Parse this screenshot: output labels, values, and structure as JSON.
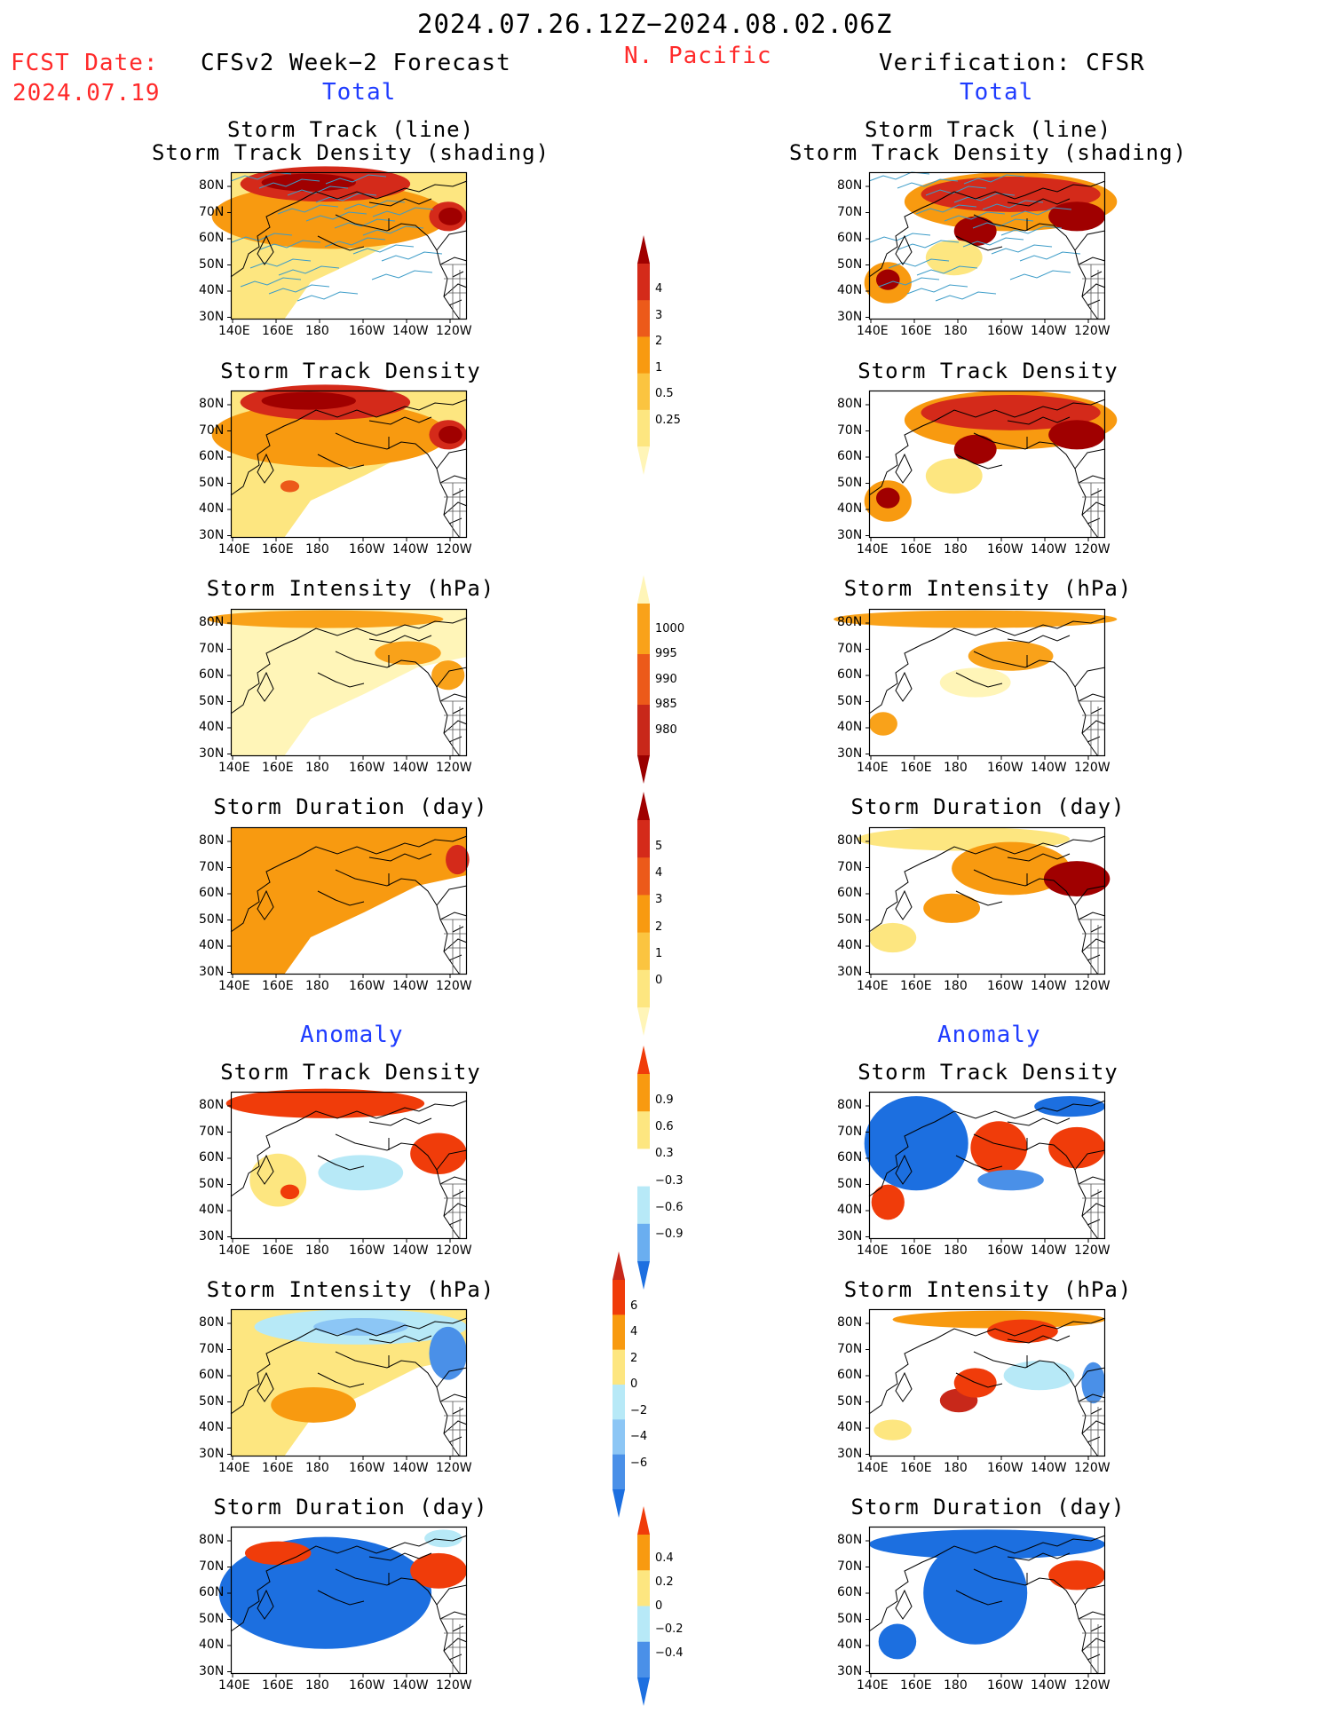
{
  "header": {
    "period": "2024.07.26.12Z−2024.08.02.06Z",
    "fcst_date_label": "FCST Date:",
    "fcst_date": "2024.07.19",
    "forecast_label": "CFSv2 Week−2 Forecast",
    "region": "N. Pacific",
    "verification_label": "Verification: CFSR",
    "total_label": "Total",
    "anomaly_label": "Anomaly"
  },
  "map_axes": {
    "lat_labels": [
      "80N",
      "70N",
      "60N",
      "50N",
      "40N",
      "30N"
    ],
    "lon_labels": [
      "140E",
      "160E",
      "180",
      "160W",
      "140W",
      "120W"
    ]
  },
  "panels": {
    "t_track": "Storm Track (line)",
    "t_track2": "Storm Track Density (shading)",
    "t_density": "Storm Track Density",
    "t_intensity": "Storm Intensity (hPa)",
    "t_duration": "Storm Duration (day)"
  },
  "colorbars": {
    "density": {
      "labels": [
        "4",
        "3",
        "2",
        "1",
        "0.5",
        "0.25"
      ],
      "colors": [
        "#a00000",
        "#d42a1a",
        "#ec5a1a",
        "#f89a10",
        "#fbc440",
        "#fde680",
        "#fff5b8"
      ]
    },
    "intensity": {
      "labels": [
        "1000",
        "995",
        "990",
        "985",
        "980"
      ],
      "colors": [
        "#fff5b8",
        "#f9a21a",
        "#ec5a1a",
        "#c8281a",
        "#9a0000"
      ]
    },
    "duration": {
      "labels": [
        "5",
        "4",
        "3",
        "2",
        "1",
        "0"
      ],
      "colors": [
        "#a00000",
        "#d42a1a",
        "#ec5a1a",
        "#f89a10",
        "#fbc440",
        "#fde680",
        "#fff5b8"
      ]
    },
    "anom_density": {
      "labels": [
        "0.9",
        "0.6",
        "0.3",
        "−0.3",
        "−0.6",
        "−0.9"
      ],
      "colors": [
        "#f03c0a",
        "#f89a10",
        "#fde680",
        "#ffffff",
        "#b7e9f7",
        "#6aaef0",
        "#1c6fe0"
      ]
    },
    "anom_intensity": {
      "labels": [
        "6",
        "4",
        "2",
        "0",
        "−2",
        "−4",
        "−6"
      ],
      "colors": [
        "#c8281a",
        "#f03c0a",
        "#f89a10",
        "#fde680",
        "#b7e9f7",
        "#8cc6f5",
        "#4a90e8",
        "#1c6fe0"
      ]
    },
    "anom_duration": {
      "labels": [
        "0.4",
        "0.2",
        "0",
        "−0.2",
        "−0.4"
      ],
      "colors": [
        "#f03c0a",
        "#f89a10",
        "#fde680",
        "#b7e9f7",
        "#4a90e8",
        "#1c6fe0"
      ]
    }
  },
  "fields": {
    "f_track": {
      "bg": "#fde680",
      "blobs": [
        [
          "#f89a10",
          0.42,
          0.3,
          0.5,
          0.22
        ],
        [
          "#d42a1a",
          0.4,
          0.08,
          0.36,
          0.12
        ],
        [
          "#a00000",
          0.33,
          0.07,
          0.2,
          0.06
        ],
        [
          "#d42a1a",
          0.92,
          0.3,
          0.08,
          0.1
        ],
        [
          "#a00000",
          0.93,
          0.3,
          0.05,
          0.06
        ]
      ],
      "mask": "track"
    },
    "v_track": {
      "bg": "#ffffff",
      "blobs": [
        [
          "#f89a10",
          0.6,
          0.2,
          0.45,
          0.2
        ],
        [
          "#d42a1a",
          0.6,
          0.15,
          0.38,
          0.12
        ],
        [
          "#a00000",
          0.45,
          0.4,
          0.09,
          0.1
        ],
        [
          "#a00000",
          0.88,
          0.3,
          0.12,
          0.1
        ],
        [
          "#f89a10",
          0.08,
          0.75,
          0.1,
          0.14
        ],
        [
          "#a00000",
          0.08,
          0.73,
          0.05,
          0.07
        ],
        [
          "#fde680",
          0.36,
          0.58,
          0.12,
          0.12
        ]
      ],
      "mask": "none"
    },
    "f_density": {
      "bg": "#fde680",
      "blobs": [
        [
          "#f89a10",
          0.42,
          0.3,
          0.5,
          0.22
        ],
        [
          "#d42a1a",
          0.4,
          0.08,
          0.36,
          0.12
        ],
        [
          "#a00000",
          0.33,
          0.07,
          0.2,
          0.06
        ],
        [
          "#d42a1a",
          0.92,
          0.3,
          0.08,
          0.1
        ],
        [
          "#a00000",
          0.93,
          0.3,
          0.05,
          0.06
        ],
        [
          "#ec5a1a",
          0.25,
          0.65,
          0.04,
          0.04
        ]
      ],
      "mask": "track"
    },
    "v_density": {
      "bg": "#ffffff",
      "blobs": [
        [
          "#f89a10",
          0.6,
          0.2,
          0.45,
          0.2
        ],
        [
          "#d42a1a",
          0.6,
          0.15,
          0.38,
          0.12
        ],
        [
          "#a00000",
          0.45,
          0.4,
          0.09,
          0.1
        ],
        [
          "#a00000",
          0.88,
          0.3,
          0.12,
          0.1
        ],
        [
          "#f89a10",
          0.08,
          0.75,
          0.1,
          0.14
        ],
        [
          "#a00000",
          0.08,
          0.73,
          0.05,
          0.07
        ],
        [
          "#fde680",
          0.36,
          0.58,
          0.12,
          0.12
        ]
      ],
      "mask": "none"
    },
    "f_intensity": {
      "bg": "#fff5b8",
      "blobs": [
        [
          "#f9a21a",
          0.4,
          0.07,
          0.5,
          0.06
        ],
        [
          "#f9a21a",
          0.75,
          0.3,
          0.14,
          0.08
        ],
        [
          "#f9a21a",
          0.92,
          0.45,
          0.07,
          0.1
        ]
      ],
      "mask": "track"
    },
    "v_intensity": {
      "bg": "#ffffff",
      "blobs": [
        [
          "#f9a21a",
          0.45,
          0.07,
          0.6,
          0.06
        ],
        [
          "#f9a21a",
          0.6,
          0.32,
          0.18,
          0.1
        ],
        [
          "#fff5b8",
          0.45,
          0.5,
          0.15,
          0.1
        ],
        [
          "#f9a21a",
          0.06,
          0.78,
          0.06,
          0.08
        ]
      ],
      "mask": "none"
    },
    "f_duration": {
      "bg": "#f89a10",
      "blobs": [
        [
          "#d42a1a",
          0.96,
          0.22,
          0.05,
          0.1
        ]
      ],
      "mask": "track"
    },
    "v_duration": {
      "bg": "#ffffff",
      "blobs": [
        [
          "#fde680",
          0.4,
          0.08,
          0.45,
          0.08
        ],
        [
          "#f89a10",
          0.6,
          0.28,
          0.25,
          0.18
        ],
        [
          "#f89a10",
          0.35,
          0.55,
          0.12,
          0.1
        ],
        [
          "#fde680",
          0.1,
          0.75,
          0.1,
          0.1
        ],
        [
          "#a00000",
          0.88,
          0.35,
          0.14,
          0.12
        ]
      ],
      "mask": "none"
    },
    "fa_density": {
      "bg": "#ffffff",
      "blobs": [
        [
          "#f03c0a",
          0.4,
          0.08,
          0.42,
          0.1
        ],
        [
          "#f03c0a",
          0.88,
          0.42,
          0.12,
          0.14
        ],
        [
          "#b7e9f7",
          0.55,
          0.55,
          0.18,
          0.12
        ],
        [
          "#fde680",
          0.2,
          0.6,
          0.12,
          0.18
        ],
        [
          "#f03c0a",
          0.25,
          0.68,
          0.04,
          0.05
        ]
      ],
      "mask": "none"
    },
    "va_density": {
      "bg": "#ffffff",
      "blobs": [
        [
          "#1c6fe0",
          0.2,
          0.35,
          0.22,
          0.32
        ],
        [
          "#f03c0a",
          0.55,
          0.38,
          0.12,
          0.18
        ],
        [
          "#f03c0a",
          0.88,
          0.38,
          0.12,
          0.14
        ],
        [
          "#f03c0a",
          0.08,
          0.75,
          0.07,
          0.12
        ],
        [
          "#4a90e8",
          0.6,
          0.6,
          0.14,
          0.07
        ],
        [
          "#1c6fe0",
          0.85,
          0.1,
          0.15,
          0.07
        ]
      ],
      "mask": "none"
    },
    "fa_intensity": {
      "bg": "#fde680",
      "blobs": [
        [
          "#b7e9f7",
          0.55,
          0.12,
          0.45,
          0.12
        ],
        [
          "#8cc6f5",
          0.55,
          0.12,
          0.2,
          0.06
        ],
        [
          "#4a90e8",
          0.92,
          0.3,
          0.08,
          0.18
        ],
        [
          "#f89a10",
          0.35,
          0.65,
          0.18,
          0.12
        ]
      ],
      "mask": "track"
    },
    "va_intensity": {
      "bg": "#ffffff",
      "blobs": [
        [
          "#f89a10",
          0.55,
          0.07,
          0.45,
          0.06
        ],
        [
          "#f03c0a",
          0.65,
          0.15,
          0.15,
          0.08
        ],
        [
          "#c8281a",
          0.38,
          0.62,
          0.08,
          0.08
        ],
        [
          "#f03c0a",
          0.45,
          0.5,
          0.09,
          0.1
        ],
        [
          "#b7e9f7",
          0.72,
          0.45,
          0.15,
          0.1
        ],
        [
          "#4a90e8",
          0.95,
          0.5,
          0.05,
          0.14
        ],
        [
          "#fde680",
          0.1,
          0.82,
          0.08,
          0.07
        ]
      ],
      "mask": "none"
    },
    "fa_duration": {
      "bg": "#ffffff",
      "blobs": [
        [
          "#1c6fe0",
          0.4,
          0.45,
          0.45,
          0.38
        ],
        [
          "#f03c0a",
          0.2,
          0.18,
          0.14,
          0.08
        ],
        [
          "#f03c0a",
          0.88,
          0.3,
          0.12,
          0.12
        ],
        [
          "#b7e9f7",
          0.9,
          0.08,
          0.08,
          0.06
        ]
      ],
      "mask": "track"
    },
    "va_duration": {
      "bg": "#ffffff",
      "blobs": [
        [
          "#1c6fe0",
          0.5,
          0.12,
          0.5,
          0.1
        ],
        [
          "#1c6fe0",
          0.45,
          0.45,
          0.22,
          0.35
        ],
        [
          "#1c6fe0",
          0.12,
          0.78,
          0.08,
          0.12
        ],
        [
          "#f03c0a",
          0.88,
          0.33,
          0.12,
          0.1
        ]
      ],
      "mask": "none"
    }
  }
}
